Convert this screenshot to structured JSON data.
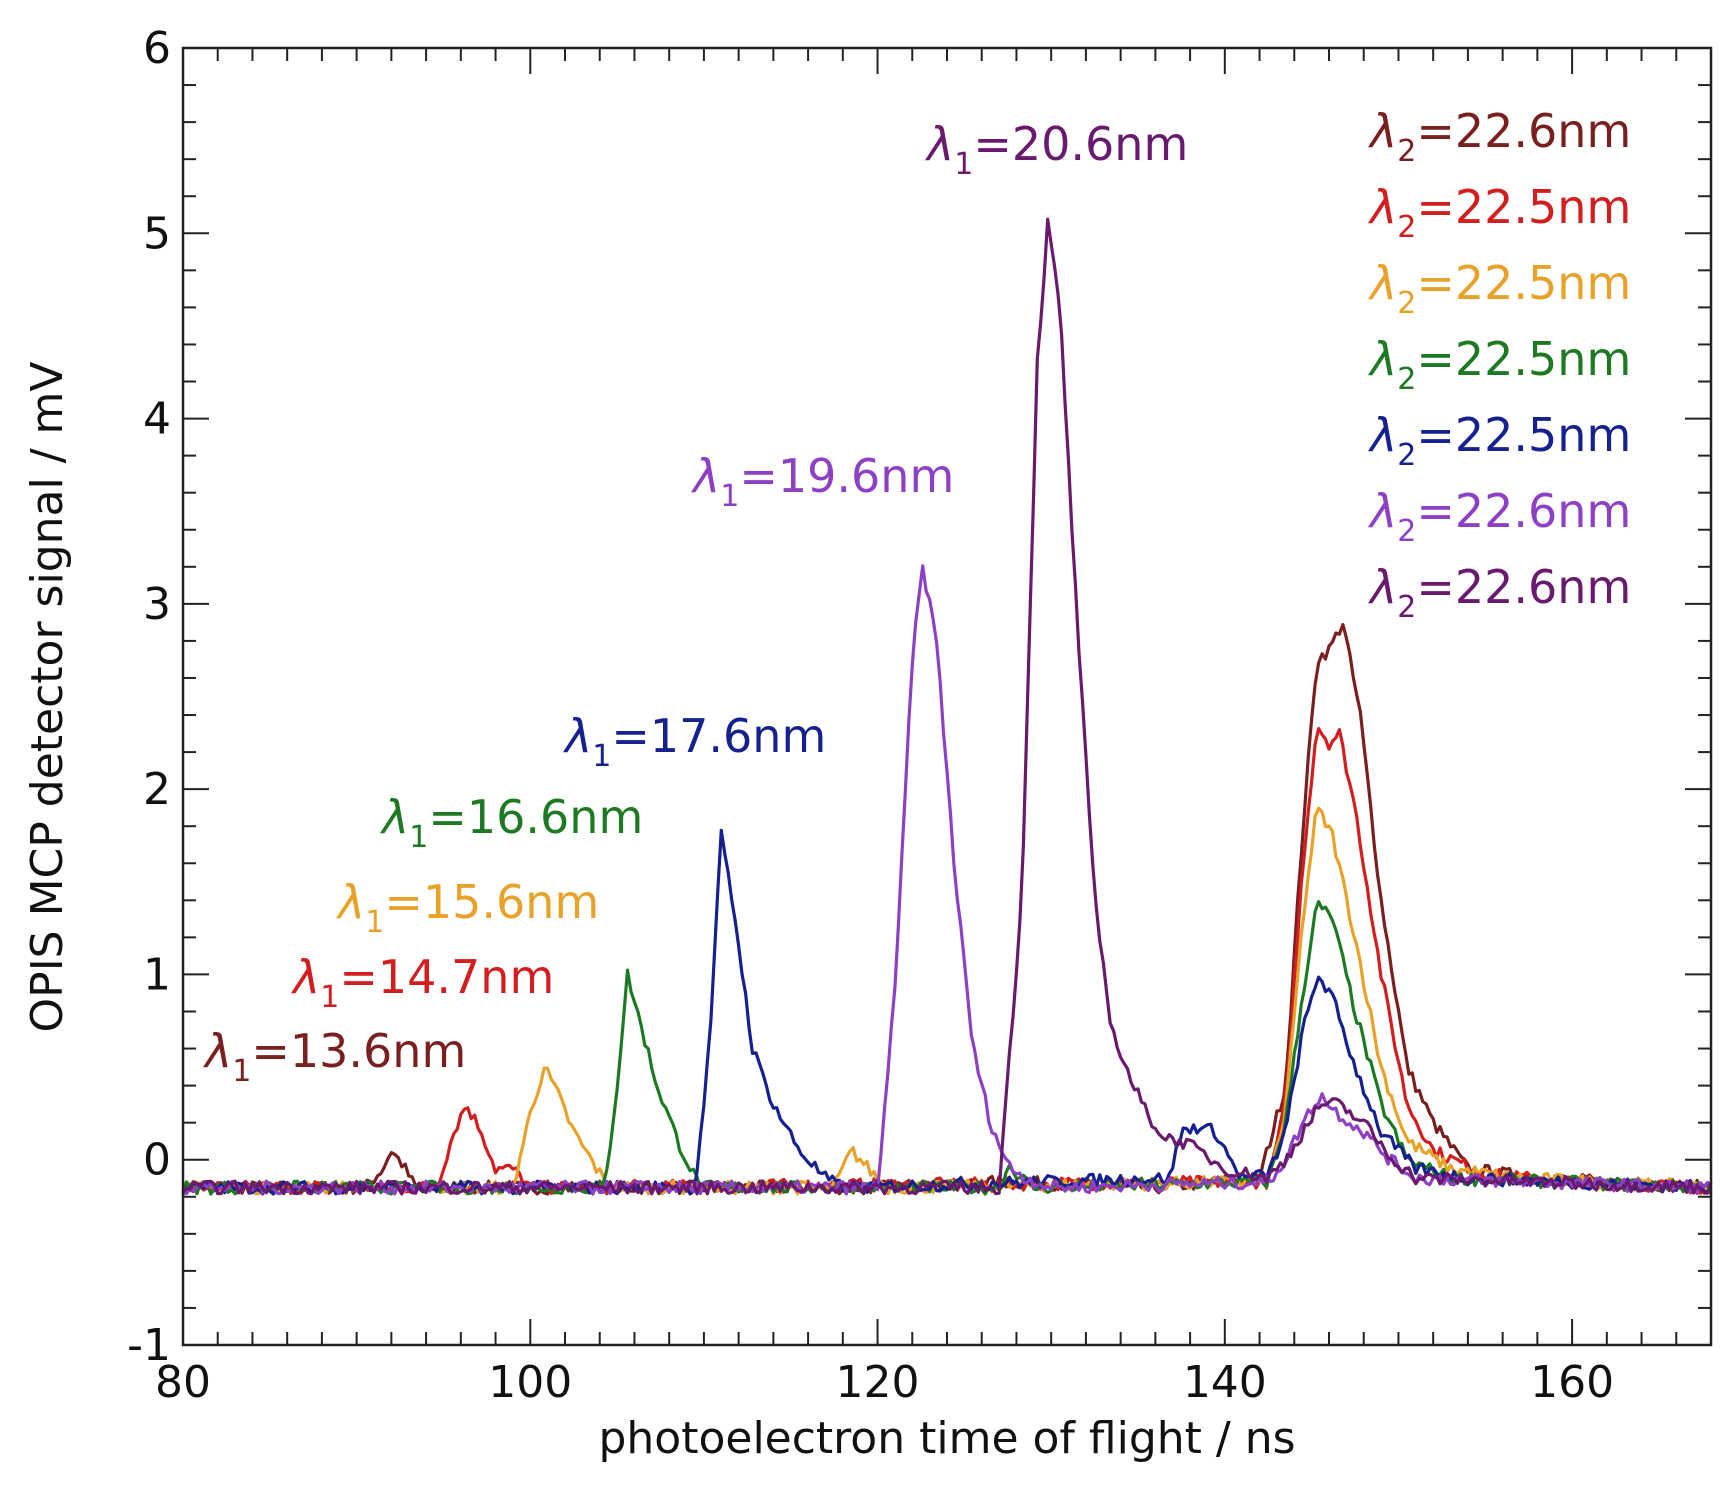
{
  "chart_data": {
    "type": "line",
    "xlabel": "photoelectron time of flight / ns",
    "ylabel": "OPIS MCP detector signal / mV",
    "xlim": [
      80,
      168
    ],
    "ylim": [
      -1,
      6
    ],
    "xticks": [
      "80",
      "100",
      "120",
      "140",
      "160"
    ],
    "yticks": [
      "-1",
      "0",
      "1",
      "2",
      "3",
      "4",
      "5",
      "6"
    ],
    "baseline_mV": -0.15,
    "series": [
      {
        "name": "λ1=13.6nm / λ2=22.6nm",
        "color": "#7a1f1f",
        "annotation": {
          "symbol": "λ",
          "sub": "1",
          "text": "=13.6nm"
        },
        "legend": {
          "symbol": "λ",
          "sub": "2",
          "text": "=22.6nm"
        },
        "points": [
          [
            80,
            -0.15
          ],
          [
            90.5,
            -0.15
          ],
          [
            91.5,
            -0.05
          ],
          [
            92,
            0.05
          ],
          [
            92.6,
            -0.02
          ],
          [
            93.4,
            -0.15
          ],
          [
            119,
            -0.15
          ],
          [
            127.5,
            -0.12
          ],
          [
            136,
            -0.15
          ],
          [
            142,
            -0.1
          ],
          [
            143.5,
            0.4
          ],
          [
            144.5,
            1.8
          ],
          [
            145.3,
            2.7
          ],
          [
            146,
            2.75
          ],
          [
            146.8,
            2.9
          ],
          [
            147.8,
            2.4
          ],
          [
            149,
            1.4
          ],
          [
            150.5,
            0.5
          ],
          [
            152,
            0.2
          ],
          [
            154,
            -0.05
          ],
          [
            158,
            -0.1
          ],
          [
            168,
            -0.15
          ]
        ]
      },
      {
        "name": "λ1=14.7nm / λ2=22.5nm",
        "color": "#d21e1e",
        "annotation": {
          "symbol": "λ",
          "sub": "1",
          "text": "=14.7nm"
        },
        "legend": {
          "symbol": "λ",
          "sub": "2",
          "text": "=22.5nm"
        },
        "points": [
          [
            80,
            -0.15
          ],
          [
            94.6,
            -0.15
          ],
          [
            95.6,
            0.15
          ],
          [
            96.3,
            0.3
          ],
          [
            97.2,
            0.15
          ],
          [
            98,
            -0.05
          ],
          [
            99,
            -0.05
          ],
          [
            100,
            -0.15
          ],
          [
            142.5,
            -0.12
          ],
          [
            143.5,
            0.3
          ],
          [
            144.5,
            1.6
          ],
          [
            145.3,
            2.35
          ],
          [
            146,
            2.25
          ],
          [
            146.6,
            2.3
          ],
          [
            147.5,
            1.9
          ],
          [
            149,
            1.0
          ],
          [
            150.5,
            0.3
          ],
          [
            152,
            0.05
          ],
          [
            155,
            -0.08
          ],
          [
            160,
            -0.12
          ],
          [
            168,
            -0.15
          ]
        ]
      },
      {
        "name": "λ1=15.6nm / λ2=22.5nm",
        "color": "#e8a22a",
        "annotation": {
          "symbol": "λ",
          "sub": "1",
          "text": "=15.6nm"
        },
        "legend": {
          "symbol": "λ",
          "sub": "2",
          "text": "=22.5nm"
        },
        "points": [
          [
            80,
            -0.15
          ],
          [
            99,
            -0.15
          ],
          [
            100,
            0.25
          ],
          [
            100.8,
            0.5
          ],
          [
            101.6,
            0.35
          ],
          [
            102.5,
            0.15
          ],
          [
            103.5,
            0.0
          ],
          [
            104.5,
            -0.15
          ],
          [
            117.5,
            -0.15
          ],
          [
            118.5,
            0.05
          ],
          [
            119.5,
            -0.05
          ],
          [
            120.5,
            -0.15
          ],
          [
            142.5,
            -0.12
          ],
          [
            143.5,
            0.25
          ],
          [
            144.5,
            1.3
          ],
          [
            145.3,
            1.9
          ],
          [
            146.2,
            1.75
          ],
          [
            147.5,
            1.2
          ],
          [
            149,
            0.5
          ],
          [
            150.5,
            0.1
          ],
          [
            153,
            -0.05
          ],
          [
            157,
            -0.1
          ],
          [
            168,
            -0.15
          ]
        ]
      },
      {
        "name": "λ1=16.6nm / λ2=22.5nm",
        "color": "#1d7a22",
        "annotation": {
          "symbol": "λ",
          "sub": "1",
          "text": "=16.6nm"
        },
        "legend": {
          "symbol": "λ",
          "sub": "2",
          "text": "=22.5nm"
        },
        "points": [
          [
            80,
            -0.15
          ],
          [
            104.3,
            -0.15
          ],
          [
            105,
            0.4
          ],
          [
            105.6,
            1.0
          ],
          [
            106.3,
            0.75
          ],
          [
            107.3,
            0.4
          ],
          [
            108.5,
            0.1
          ],
          [
            109.5,
            -0.1
          ],
          [
            110,
            -0.15
          ],
          [
            127,
            -0.15
          ],
          [
            127.6,
            -0.03
          ],
          [
            128.3,
            -0.1
          ],
          [
            129,
            -0.15
          ],
          [
            142.5,
            -0.12
          ],
          [
            143.5,
            0.2
          ],
          [
            144.5,
            0.9
          ],
          [
            145.3,
            1.38
          ],
          [
            146.2,
            1.3
          ],
          [
            147.5,
            0.8
          ],
          [
            149,
            0.3
          ],
          [
            150.5,
            0.0
          ],
          [
            153,
            -0.1
          ],
          [
            168,
            -0.15
          ]
        ]
      },
      {
        "name": "λ1=17.6nm / λ2=22.5nm",
        "color": "#16208f",
        "annotation": {
          "symbol": "λ",
          "sub": "1",
          "text": "=17.6nm"
        },
        "legend": {
          "symbol": "λ",
          "sub": "2",
          "text": "=22.5nm"
        },
        "points": [
          [
            80,
            -0.15
          ],
          [
            109.5,
            -0.15
          ],
          [
            110.3,
            0.6
          ],
          [
            111,
            1.75
          ],
          [
            111.8,
            1.3
          ],
          [
            112.8,
            0.6
          ],
          [
            114,
            0.3
          ],
          [
            115.5,
            0.05
          ],
          [
            117,
            -0.1
          ],
          [
            118,
            -0.15
          ],
          [
            136.8,
            -0.1
          ],
          [
            137.5,
            0.15
          ],
          [
            138.5,
            0.18
          ],
          [
            139.5,
            0.15
          ],
          [
            140.3,
            0.0
          ],
          [
            141,
            -0.1
          ],
          [
            142.5,
            -0.08
          ],
          [
            143.5,
            0.15
          ],
          [
            144.5,
            0.7
          ],
          [
            145.4,
            1.0
          ],
          [
            146.3,
            0.85
          ],
          [
            147.5,
            0.5
          ],
          [
            149,
            0.15
          ],
          [
            151,
            -0.05
          ],
          [
            154,
            -0.1
          ],
          [
            168,
            -0.15
          ]
        ]
      },
      {
        "name": "λ1=19.6nm / λ2=22.6nm",
        "color": "#8e40c4",
        "annotation": {
          "symbol": "λ",
          "sub": "1",
          "text": "=19.6nm"
        },
        "legend": {
          "symbol": "λ",
          "sub": "2",
          "text": "=22.6nm"
        },
        "points": [
          [
            80,
            -0.15
          ],
          [
            120,
            -0.15
          ],
          [
            121,
            0.9
          ],
          [
            122,
            2.7
          ],
          [
            122.6,
            3.2
          ],
          [
            123.4,
            2.8
          ],
          [
            124.5,
            1.5
          ],
          [
            125.5,
            0.6
          ],
          [
            126.5,
            0.2
          ],
          [
            127.5,
            -0.03
          ],
          [
            128.5,
            -0.1
          ],
          [
            130,
            -0.15
          ],
          [
            142.5,
            -0.12
          ],
          [
            143.5,
            0.0
          ],
          [
            144.5,
            0.2
          ],
          [
            145.5,
            0.35
          ],
          [
            146.5,
            0.25
          ],
          [
            148,
            0.15
          ],
          [
            149.5,
            0.0
          ],
          [
            151,
            -0.1
          ],
          [
            168,
            -0.15
          ]
        ]
      },
      {
        "name": "λ1=20.6nm / λ2=22.6nm",
        "color": "#6a1a6e",
        "annotation": {
          "symbol": "λ",
          "sub": "1",
          "text": "=20.6nm"
        },
        "legend": {
          "symbol": "λ",
          "sub": "2",
          "text": "=22.6nm"
        },
        "points": [
          [
            80,
            -0.15
          ],
          [
            127,
            -0.15
          ],
          [
            128.3,
            1.4
          ],
          [
            129.2,
            4.3
          ],
          [
            129.8,
            5.05
          ],
          [
            130.5,
            4.6
          ],
          [
            131.5,
            2.9
          ],
          [
            132.5,
            1.4
          ],
          [
            133.5,
            0.7
          ],
          [
            134.5,
            0.45
          ],
          [
            135.5,
            0.25
          ],
          [
            136.5,
            0.12
          ],
          [
            137.5,
            0.1
          ],
          [
            138.5,
            0.05
          ],
          [
            140,
            -0.05
          ],
          [
            142.5,
            -0.1
          ],
          [
            143.5,
            0.0
          ],
          [
            144.5,
            0.15
          ],
          [
            145.5,
            0.3
          ],
          [
            146.5,
            0.3
          ],
          [
            148,
            0.2
          ],
          [
            149.5,
            0.02
          ],
          [
            151,
            -0.1
          ],
          [
            168,
            -0.15
          ]
        ]
      }
    ]
  }
}
